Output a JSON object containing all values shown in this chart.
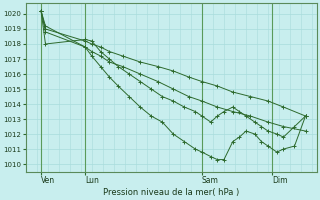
{
  "bg_color": "#c8eeee",
  "grid_color": "#a8dcdc",
  "line_color": "#2d6a2d",
  "vline_color": "#5a9a5a",
  "xlabel": "Pression niveau de la mer( hPa )",
  "ylim": [
    1009.5,
    1020.7
  ],
  "xlim": [
    -0.2,
    13.0
  ],
  "yticks": [
    1010,
    1011,
    1012,
    1013,
    1014,
    1015,
    1016,
    1017,
    1018,
    1019,
    1020
  ],
  "xtick_positions": [
    0.5,
    2.5,
    7.8,
    11.0
  ],
  "xtick_labels": [
    "Ven",
    "Lun",
    "Sam",
    "Dim"
  ],
  "vline_positions": [
    0.5,
    2.5,
    7.8,
    11.0
  ],
  "series": [
    {
      "x": [
        0.5,
        0.7,
        2.5,
        2.8,
        3.2,
        3.6,
        4.2,
        5.0,
        5.8,
        6.5,
        7.2,
        7.8,
        8.5,
        9.2,
        10.0,
        10.8,
        11.5,
        12.5
      ],
      "y": [
        1020.2,
        1019.0,
        1018.2,
        1018.0,
        1017.8,
        1017.5,
        1017.2,
        1016.8,
        1016.5,
        1016.2,
        1015.8,
        1015.5,
        1015.2,
        1014.8,
        1014.5,
        1014.2,
        1013.8,
        1013.2
      ]
    },
    {
      "x": [
        0.5,
        0.7,
        2.5,
        2.8,
        3.2,
        3.6,
        4.2,
        5.0,
        5.8,
        6.5,
        7.2,
        7.8,
        8.5,
        9.2,
        10.0,
        10.8,
        11.5,
        12.5
      ],
      "y": [
        1020.2,
        1018.8,
        1017.8,
        1017.5,
        1017.2,
        1016.8,
        1016.5,
        1016.0,
        1015.5,
        1015.0,
        1014.5,
        1014.2,
        1013.8,
        1013.5,
        1013.2,
        1012.8,
        1012.5,
        1012.2
      ]
    },
    {
      "x": [
        0.5,
        0.7,
        2.5,
        2.8,
        3.2,
        3.6,
        4.0,
        4.5,
        5.0,
        5.5,
        6.0,
        6.5,
        7.0,
        7.5,
        7.8,
        8.2,
        8.5,
        8.8,
        9.2,
        9.5,
        9.8,
        10.2,
        10.5,
        10.8,
        11.2,
        11.5,
        12.0,
        12.5
      ],
      "y": [
        1020.2,
        1019.2,
        1017.8,
        1017.2,
        1016.5,
        1015.8,
        1015.2,
        1014.5,
        1013.8,
        1013.2,
        1012.8,
        1012.0,
        1011.5,
        1011.0,
        1010.8,
        1010.5,
        1010.3,
        1010.3,
        1011.5,
        1011.8,
        1012.2,
        1012.0,
        1011.5,
        1011.2,
        1010.8,
        1011.0,
        1011.2,
        1013.2
      ]
    },
    {
      "x": [
        0.5,
        0.7,
        2.5,
        2.8,
        3.2,
        3.6,
        4.0,
        4.5,
        5.0,
        5.5,
        6.0,
        6.5,
        7.0,
        7.5,
        7.8,
        8.2,
        8.5,
        8.8,
        9.2,
        9.5,
        9.8,
        10.2,
        10.5,
        10.8,
        11.2,
        11.5,
        12.0,
        12.5
      ],
      "y": [
        1020.2,
        1018.0,
        1018.3,
        1018.2,
        1017.5,
        1017.0,
        1016.5,
        1016.0,
        1015.5,
        1015.0,
        1014.5,
        1014.2,
        1013.8,
        1013.5,
        1013.2,
        1012.8,
        1013.2,
        1013.5,
        1013.8,
        1013.5,
        1013.2,
        1012.8,
        1012.5,
        1012.2,
        1012.0,
        1011.8,
        1012.5,
        1013.2
      ]
    }
  ]
}
